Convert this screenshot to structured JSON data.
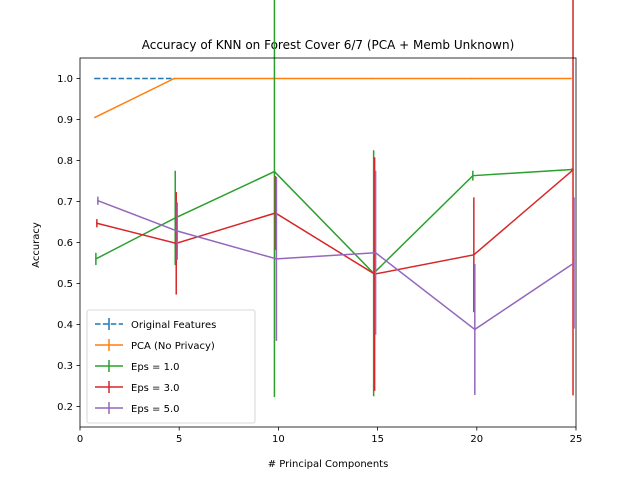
{
  "chart_data": {
    "type": "line",
    "title": "Accuracy of KNN on Forest Cover 6/7 (PCA + Memb Unknown)",
    "xlabel": "# Principal Components",
    "ylabel": "Accuracy",
    "xlim": [
      0,
      25
    ],
    "ylim": [
      0.15,
      1.05
    ],
    "xticks": [
      0,
      5,
      10,
      15,
      20,
      25
    ],
    "yticks": [
      0.2,
      0.3,
      0.4,
      0.5,
      0.6,
      0.7,
      0.8,
      0.9,
      1.0
    ],
    "legend_position": "lower-left",
    "grid": false,
    "series": [
      {
        "name": "Original Features",
        "color": "#1f77b4",
        "dashed": true,
        "points": [
          {
            "x": 0.75,
            "y": 1.0,
            "err": 0
          },
          {
            "x": 4.75,
            "y": 1.0,
            "err": 0
          }
        ]
      },
      {
        "name": "PCA (No Privacy)",
        "color": "#ff7f0e",
        "dashed": false,
        "points": [
          {
            "x": 0.75,
            "y": 0.905,
            "err": 0
          },
          {
            "x": 4.75,
            "y": 1.0,
            "err": 0
          },
          {
            "x": 9.75,
            "y": 1.0,
            "err": 0
          },
          {
            "x": 14.75,
            "y": 1.0,
            "err": 0
          },
          {
            "x": 19.75,
            "y": 1.0,
            "err": 0
          },
          {
            "x": 24.75,
            "y": 1.0,
            "err": 0
          }
        ]
      },
      {
        "name": "Eps = 1.0",
        "color": "#2ca02c",
        "dashed": false,
        "points": [
          {
            "x": 0.8,
            "y": 0.56,
            "err": 0.015
          },
          {
            "x": 4.8,
            "y": 0.66,
            "err": 0.115
          },
          {
            "x": 9.8,
            "y": 0.773,
            "err": 0.55
          },
          {
            "x": 14.8,
            "y": 0.525,
            "err": 0.3
          },
          {
            "x": 19.8,
            "y": 0.763,
            "err": 0.012
          },
          {
            "x": 24.8,
            "y": 0.778,
            "err": 0.003
          }
        ]
      },
      {
        "name": "Eps = 3.0",
        "color": "#d62728",
        "dashed": false,
        "points": [
          {
            "x": 0.85,
            "y": 0.647,
            "err": 0.01
          },
          {
            "x": 4.85,
            "y": 0.598,
            "err": 0.125
          },
          {
            "x": 9.85,
            "y": 0.672,
            "err": 0.09
          },
          {
            "x": 14.85,
            "y": 0.523,
            "err": 0.285
          },
          {
            "x": 19.85,
            "y": 0.57,
            "err": 0.14
          },
          {
            "x": 24.85,
            "y": 0.777,
            "err": 0.55
          }
        ]
      },
      {
        "name": "Eps = 5.0",
        "color": "#9467bd",
        "dashed": false,
        "points": [
          {
            "x": 0.9,
            "y": 0.702,
            "err": 0.01
          },
          {
            "x": 4.9,
            "y": 0.628,
            "err": 0.07
          },
          {
            "x": 9.9,
            "y": 0.56,
            "err": 0.2
          },
          {
            "x": 14.9,
            "y": 0.575,
            "err": 0.2
          },
          {
            "x": 19.9,
            "y": 0.388,
            "err": 0.16
          },
          {
            "x": 24.9,
            "y": 0.55,
            "err": 0.16
          }
        ]
      }
    ]
  }
}
